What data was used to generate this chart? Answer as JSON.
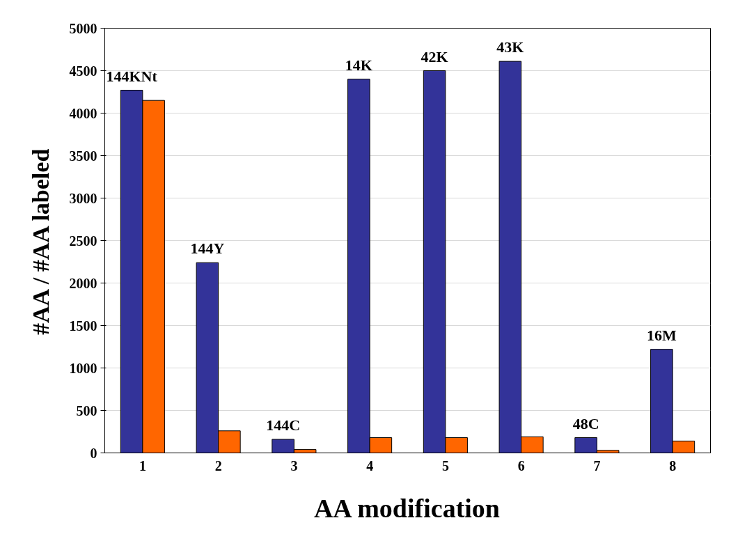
{
  "chart_data": {
    "type": "bar",
    "xlabel": "AA modification",
    "ylabel": "#AA / #AA labeled",
    "categories": [
      "1",
      "2",
      "3",
      "4",
      "5",
      "6",
      "7",
      "8"
    ],
    "series": [
      {
        "color": "#333399",
        "values": [
          4270,
          2240,
          160,
          4400,
          4500,
          4610,
          180,
          1220
        ]
      },
      {
        "color": "#ff6600",
        "values": [
          4150,
          260,
          40,
          180,
          180,
          190,
          30,
          140
        ]
      }
    ],
    "ylim": [
      0,
      5000
    ],
    "yticks": [
      0,
      500,
      1000,
      1500,
      2000,
      2500,
      3000,
      3500,
      4000,
      4500,
      5000
    ],
    "grid": "y",
    "annotations": [
      {
        "text": "144KNt",
        "x": "1",
        "y": 4270
      },
      {
        "text": "144Y",
        "x": "2",
        "y": 2240
      },
      {
        "text": "144C",
        "x": "3",
        "y": 160
      },
      {
        "text": "14K",
        "x": "4",
        "y": 4400
      },
      {
        "text": "42K",
        "x": "5",
        "y": 4500
      },
      {
        "text": "43K",
        "x": "6",
        "y": 4610
      },
      {
        "text": "48C",
        "x": "7",
        "y": 180
      },
      {
        "text": "16M",
        "x": "8",
        "y": 1220
      }
    ]
  }
}
